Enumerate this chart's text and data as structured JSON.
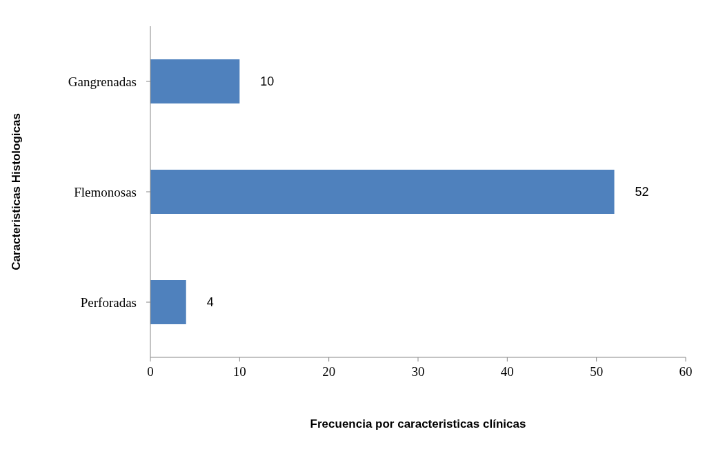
{
  "chart_data": {
    "type": "bar",
    "orientation": "horizontal",
    "categories": [
      "Gangrenadas",
      "Flemonosas",
      "Perforadas"
    ],
    "values": [
      10,
      52,
      4
    ],
    "color": "#4f81bd",
    "xlim": [
      0,
      60
    ],
    "xticks": [
      0,
      10,
      20,
      30,
      40,
      50,
      60
    ],
    "xlabel": "Frecuencia por caracteristicas clínicas",
    "ylabel": "Caracteristicas Histologicas",
    "data_labels": true,
    "grid": false,
    "legend": false
  }
}
